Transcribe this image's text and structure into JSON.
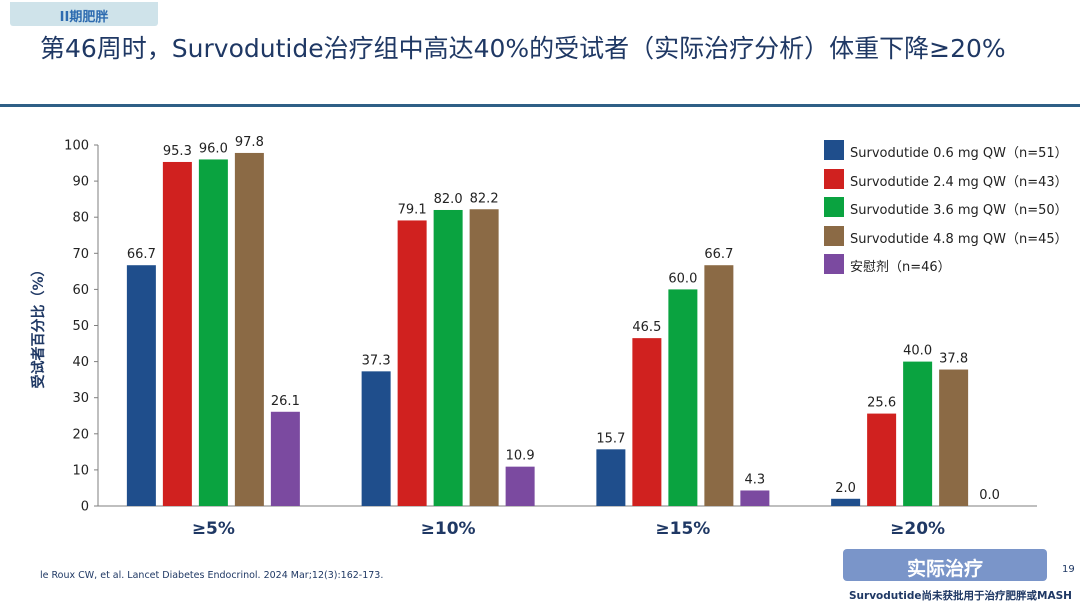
{
  "header": {
    "tag": "II期肥胖",
    "title": "第46周时，Survodutide治疗组中高达40%的受试者（实际治疗分析）体重下降≥20%"
  },
  "chart_data": {
    "type": "bar",
    "ylabel": "受试者百分比（%）",
    "ylim": [
      0,
      100
    ],
    "yticks": [
      0,
      10,
      20,
      30,
      40,
      50,
      60,
      70,
      80,
      90,
      100
    ],
    "grid": false,
    "legend_position": "top-right",
    "categories": [
      "≥5%",
      "≥10%",
      "≥15%",
      "≥20%"
    ],
    "series": [
      {
        "name": "Survodutide 0.6 mg QW（n=51）",
        "color": "#1f4e8c",
        "values": [
          66.7,
          37.3,
          15.7,
          2.0
        ],
        "labels": [
          "66.7",
          "37.3",
          "15.7",
          "2.0"
        ]
      },
      {
        "name": "Survodutide 2.4 mg QW（n=43）",
        "color": "#d0211f",
        "values": [
          95.3,
          79.1,
          46.5,
          25.6
        ],
        "labels": [
          "95.3",
          "79.1",
          "46.5",
          "25.6"
        ]
      },
      {
        "name": "Survodutide 3.6 mg QW（n=50）",
        "color": "#0aa340",
        "values": [
          96.0,
          82.0,
          60.0,
          40.0
        ],
        "labels": [
          "96.0",
          "82.0",
          "60.0",
          "40.0"
        ]
      },
      {
        "name": "Survodutide 4.8 mg QW（n=45）",
        "color": "#8b6a45",
        "values": [
          97.8,
          82.2,
          66.7,
          37.8
        ],
        "labels": [
          "97.8",
          "82.2",
          "66.7",
          "37.8"
        ]
      },
      {
        "name": "安慰剂（n=46）",
        "color": "#7b4aa0",
        "values": [
          26.1,
          10.9,
          4.3,
          0.0
        ],
        "labels": [
          "26.1",
          "10.9",
          "4.3",
          "0.0"
        ]
      }
    ]
  },
  "footer": {
    "reference": "le Roux CW, et al. Lancet Diabetes Endocrinol. 2024 Mar;12(3):162-173.",
    "pill_label": "实际治疗",
    "page_number": "19",
    "disclaimer": "Survodutide尚未获批用于治疗肥胖或MASH"
  }
}
